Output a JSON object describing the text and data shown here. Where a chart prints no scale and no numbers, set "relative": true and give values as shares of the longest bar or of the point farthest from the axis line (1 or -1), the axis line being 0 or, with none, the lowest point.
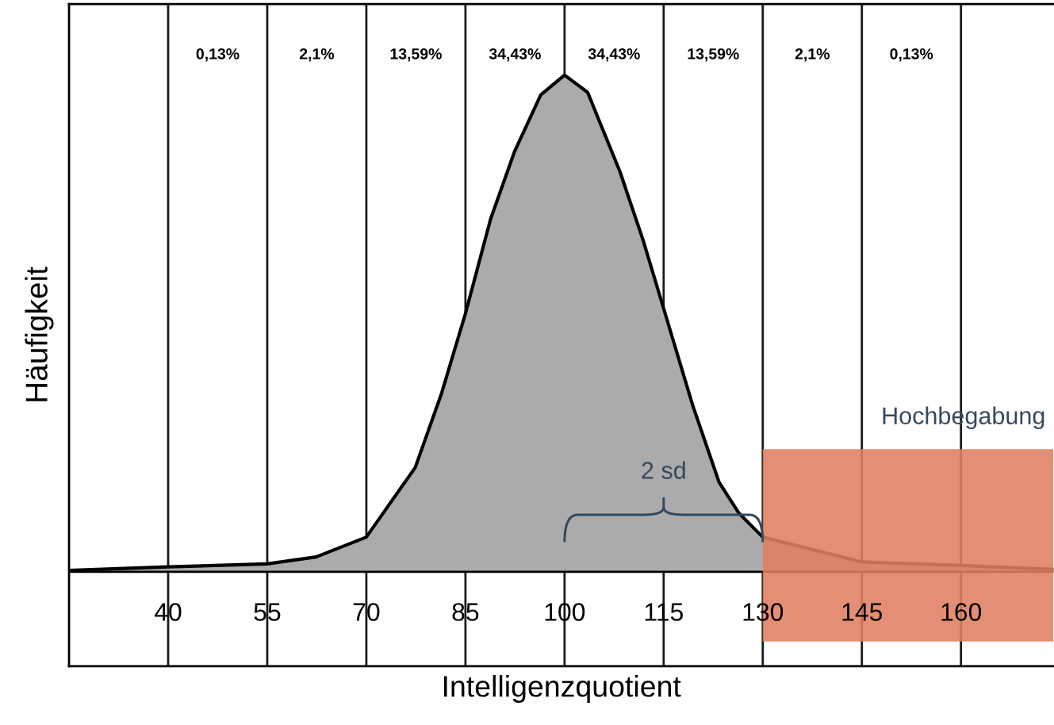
{
  "chart_data": {
    "type": "area",
    "relative": true,
    "xlabel": "Intelligenzquotient",
    "ylabel": "Häufigkeit",
    "xlim": [
      25,
      174
    ],
    "xticks": [
      40,
      55,
      70,
      85,
      100,
      115,
      130,
      145,
      160
    ],
    "grid": "x",
    "series": [
      {
        "color": "#ababab",
        "x": [
          25,
          40,
          55,
          62.4,
          70,
          77.4,
          81.4,
          85,
          88.8,
          92.4,
          96.4,
          100,
          103.5,
          108.4,
          111.9,
          115,
          119.4,
          123.4,
          126.4,
          130,
          145,
          160,
          174
        ],
        "values": [
          0.003,
          0.01,
          0.016,
          0.03,
          0.07,
          0.21,
          0.36,
          0.52,
          0.71,
          0.845,
          0.96,
          1.0,
          0.965,
          0.805,
          0.667,
          0.53,
          0.335,
          0.18,
          0.118,
          0.07,
          0.02,
          0.013,
          0.005
        ]
      }
    ],
    "bands": [
      {
        "axis": "x",
        "from": 130,
        "to": 174,
        "label": "Hochbegabung",
        "color": "#e07f62"
      }
    ],
    "annotations": [
      "0,13%",
      "2,1%",
      "13,59%",
      "34,43%",
      "34,43%",
      "13,59%",
      "2,1%",
      "0,13%",
      "2 sd"
    ]
  }
}
